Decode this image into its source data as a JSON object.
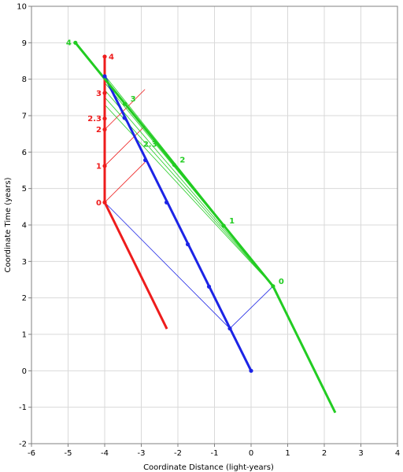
{
  "chart_data": {
    "type": "line",
    "title": "",
    "xlabel": "Coordinate Distance (light-years)",
    "ylabel": "Coordinate Time (years)",
    "xlim": [
      -6,
      4
    ],
    "ylim": [
      -2,
      10
    ],
    "x_ticks": [
      "-6",
      "-5",
      "-4",
      "-3",
      "-2",
      "-1",
      "0",
      "1",
      "2",
      "3",
      "4"
    ],
    "y_ticks": [
      "-2",
      "-1",
      "0",
      "1",
      "2",
      "3",
      "4",
      "5",
      "6",
      "7",
      "8",
      "9",
      "10"
    ],
    "grid": true,
    "colors": {
      "red": "#ee1c1c",
      "blue": "#1c24e6",
      "green": "#22cc22",
      "grid": "#d9d9d9"
    },
    "series": [
      {
        "color": "#ee1c1c",
        "points": [
          [
            -2.3,
            1.15
          ],
          [
            -4.0,
            4.62
          ],
          [
            -4.0,
            8.62
          ]
        ]
      },
      {
        "color": "#1c24e6",
        "points": [
          [
            0,
            0
          ],
          [
            -4.0,
            8.08
          ]
        ]
      },
      {
        "color": "#22cc22",
        "points": [
          [
            2.3,
            -1.15
          ],
          [
            0.6,
            2.32
          ],
          [
            -4.8,
            9.0
          ]
        ]
      }
    ],
    "markers": {
      "red": [
        {
          "label": "0",
          "x": -4.0,
          "y": 4.62
        },
        {
          "label": "1",
          "x": -4.0,
          "y": 5.62
        },
        {
          "label": "2",
          "x": -4.0,
          "y": 6.62
        },
        {
          "label": "2.3",
          "x": -4.0,
          "y": 6.92
        },
        {
          "label": "3",
          "x": -4.0,
          "y": 7.62
        },
        {
          "label": "4",
          "x": -4.0,
          "y": 8.62
        }
      ],
      "blue": [
        {
          "x": 0,
          "y": 0
        },
        {
          "x": -0.58,
          "y": 1.16
        },
        {
          "x": -1.15,
          "y": 2.31
        },
        {
          "x": -1.73,
          "y": 3.47
        },
        {
          "x": -2.31,
          "y": 4.62
        },
        {
          "x": -2.89,
          "y": 5.78
        },
        {
          "x": -3.46,
          "y": 6.94
        },
        {
          "x": -4.0,
          "y": 8.08
        }
      ],
      "green": [
        {
          "label": "0",
          "x": 0.6,
          "y": 2.32
        },
        {
          "label": "1",
          "x": -0.75,
          "y": 3.98
        },
        {
          "label": "2",
          "x": -2.1,
          "y": 5.65
        },
        {
          "label": "2.3",
          "x": null,
          "y": null
        },
        {
          "label": "3",
          "x": -3.45,
          "y": 7.32
        },
        {
          "label": "4",
          "x": -4.8,
          "y": 9.0
        }
      ]
    },
    "light_lines": [
      {
        "color": "#1c24e6",
        "from": [
          -4.0,
          4.62
        ],
        "to": [
          -0.58,
          1.16
        ]
      },
      {
        "color": "#1c24e6",
        "from": [
          -0.58,
          1.16
        ],
        "to": [
          0.6,
          2.32
        ]
      },
      {
        "color": "#ee1c1c",
        "from": [
          -4.0,
          4.62
        ],
        "to": [
          -2.9,
          5.72
        ]
      },
      {
        "color": "#ee1c1c",
        "from": [
          -4.0,
          5.62
        ],
        "to": [
          -2.9,
          6.72
        ]
      },
      {
        "color": "#ee1c1c",
        "from": [
          -4.0,
          6.62
        ],
        "to": [
          -2.9,
          7.72
        ]
      },
      {
        "color": "#22cc22",
        "from": [
          0.6,
          2.32
        ],
        "to": [
          -3.98,
          7.28
        ]
      },
      {
        "color": "#22cc22",
        "from": [
          0.6,
          2.32
        ],
        "to": [
          -3.98,
          7.48
        ]
      },
      {
        "color": "#22cc22",
        "from": [
          0.6,
          2.32
        ],
        "to": [
          -3.98,
          7.68
        ]
      },
      {
        "color": "#22cc22",
        "from": [
          0.6,
          2.32
        ],
        "to": [
          -3.98,
          7.88
        ]
      },
      {
        "color": "#22cc22",
        "from": [
          0.6,
          2.32
        ],
        "to": [
          -3.98,
          8.08
        ]
      }
    ]
  }
}
